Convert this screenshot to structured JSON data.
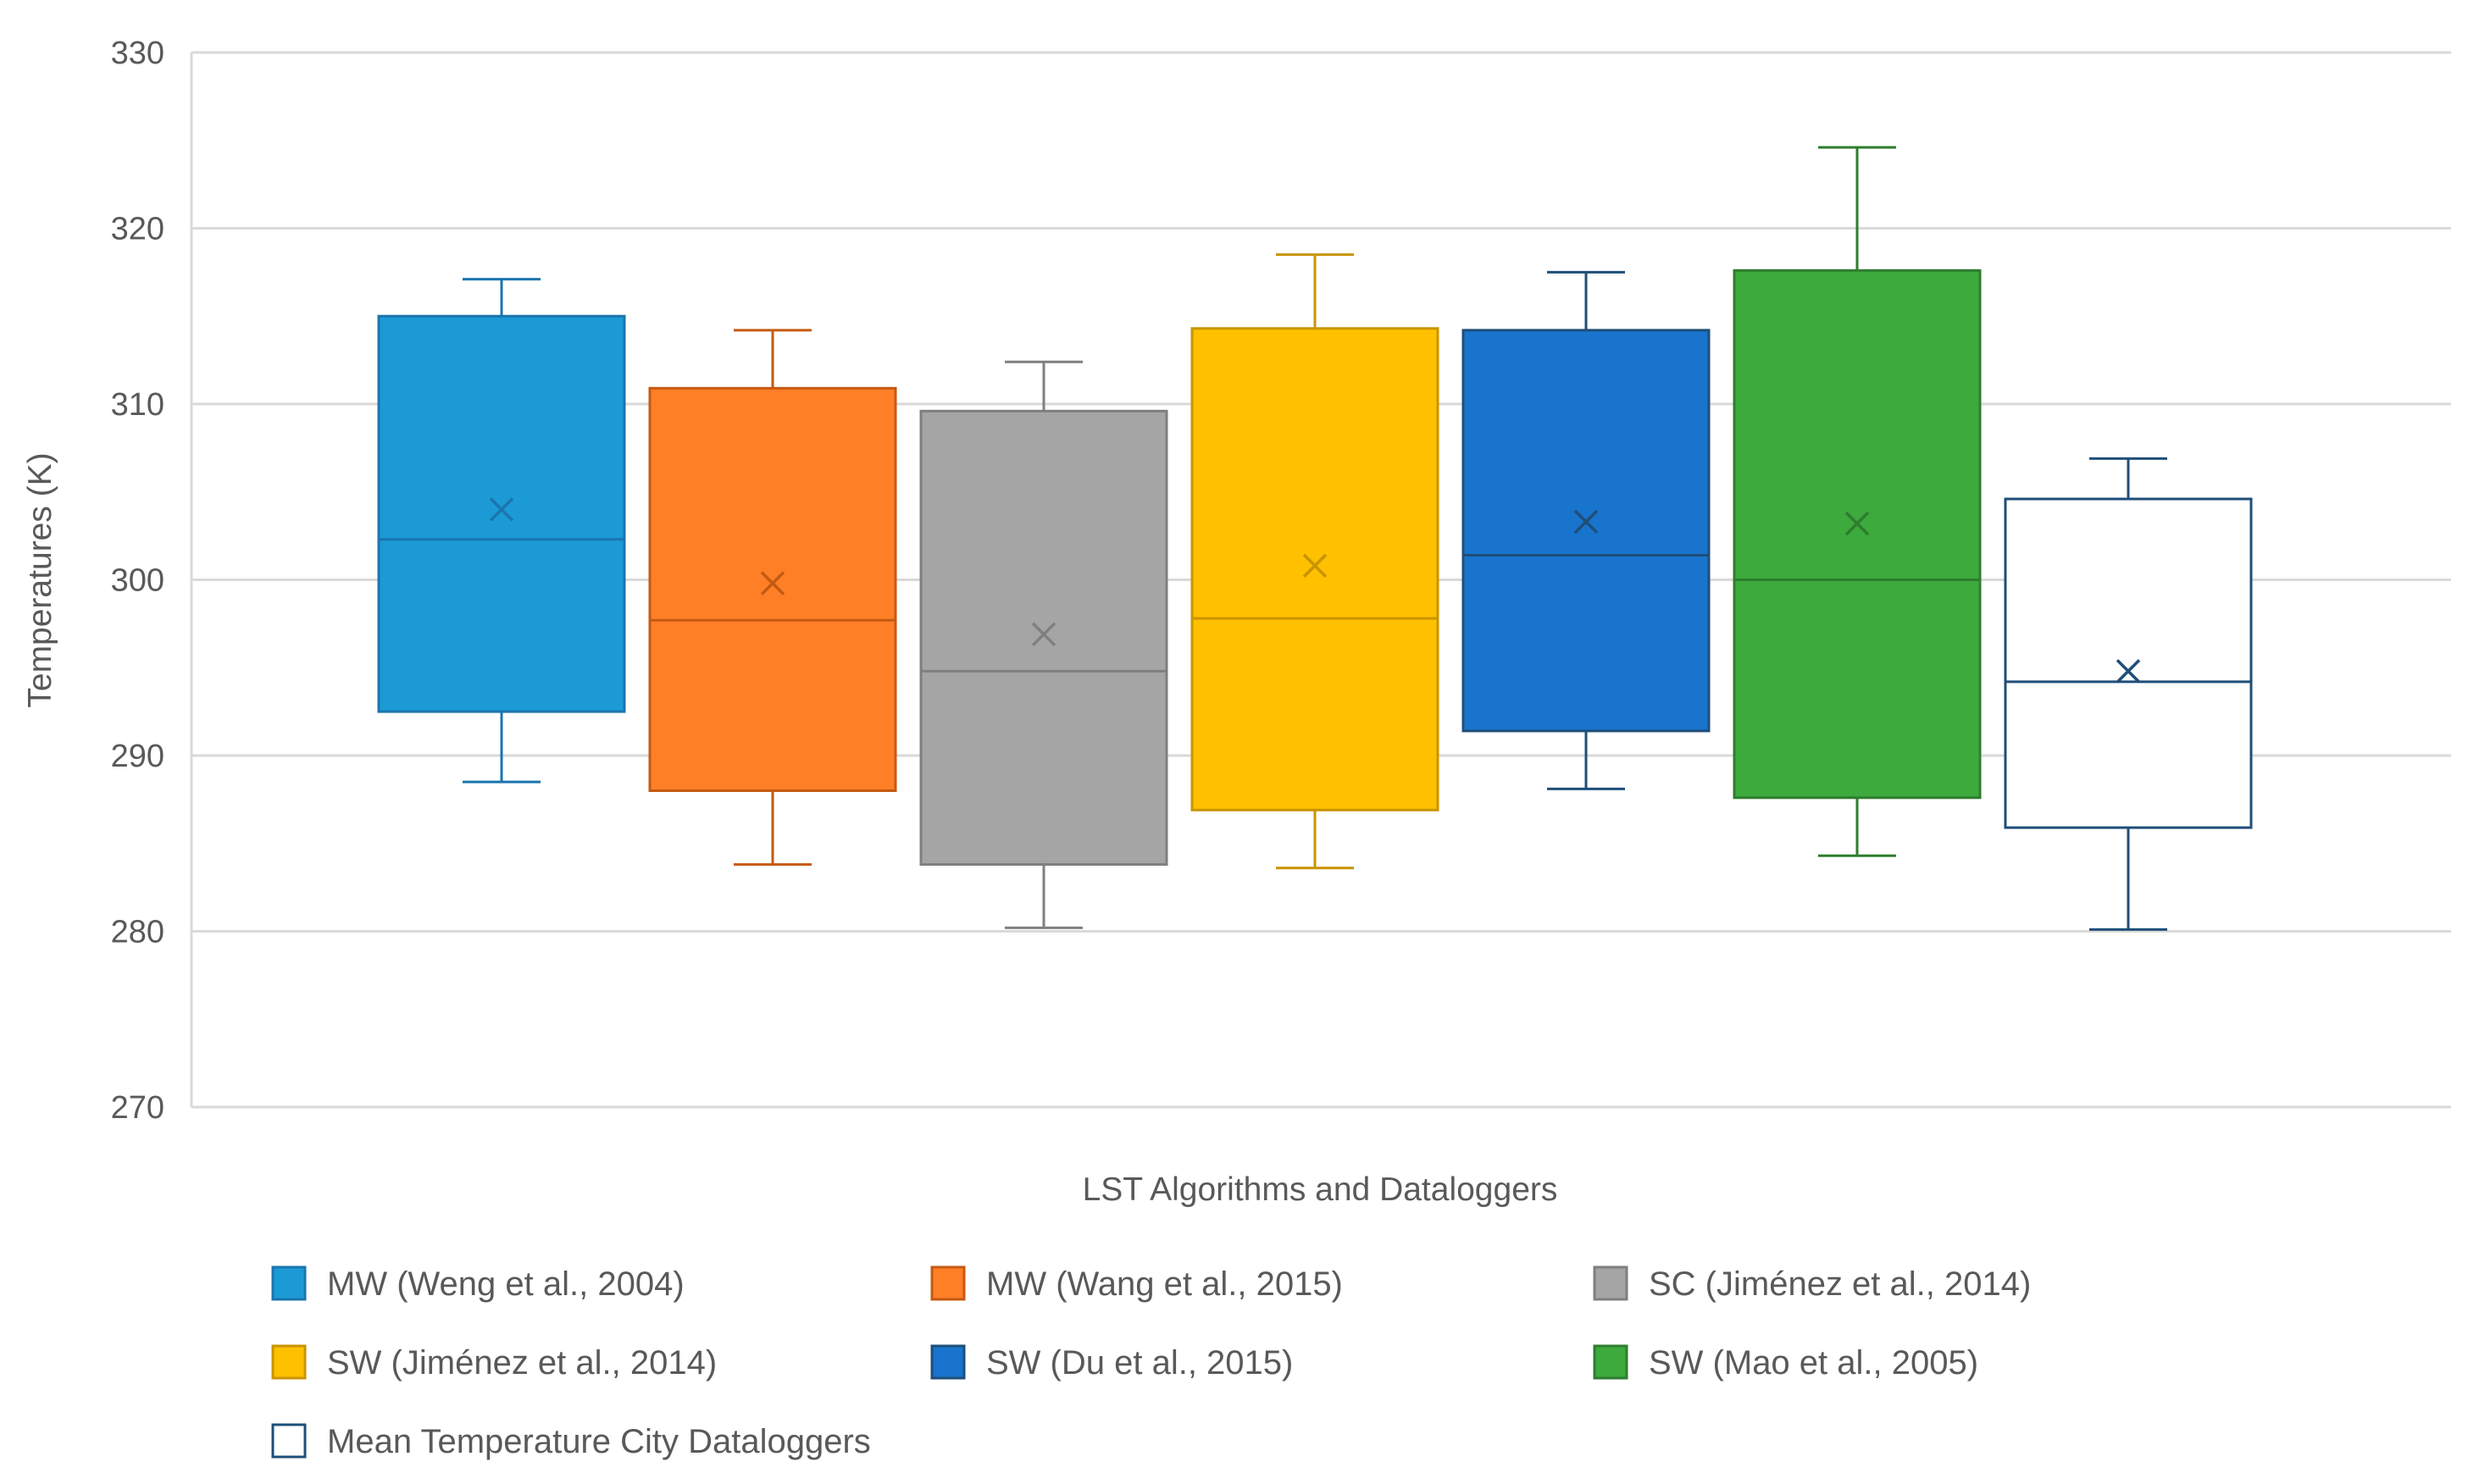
{
  "chart_data": {
    "type": "boxplot",
    "title": "",
    "xlabel": "LST Algorithms and Dataloggers",
    "ylabel": "Temperatures (K)",
    "ylim": [
      270,
      330
    ],
    "yticks": [
      270,
      280,
      290,
      300,
      310,
      320,
      330
    ],
    "grid": true,
    "legend_position": "bottom",
    "series": [
      {
        "name": "MW (Weng et al., 2004)",
        "color": "#1B9AD6",
        "line_color": "#1B75AE",
        "mean_color": "#1B75AE",
        "min": 288.5,
        "q1": 292.5,
        "median": 302.3,
        "q3": 315.0,
        "max": 317.1,
        "mean": 304.0
      },
      {
        "name": "MW (Wang et al., 2015)",
        "color": "#FF7F27",
        "line_color": "#C55A11",
        "mean_color": "#C55A11",
        "min": 283.8,
        "q1": 288.0,
        "median": 297.7,
        "q3": 310.9,
        "max": 314.2,
        "mean": 299.8
      },
      {
        "name": "SC (Jiménez et al., 2014)",
        "color": "#A5A5A5",
        "line_color": "#7F7F7F",
        "mean_color": "#7F7F7F",
        "min": 280.2,
        "q1": 283.8,
        "median": 294.8,
        "q3": 309.6,
        "max": 312.4,
        "mean": 296.9
      },
      {
        "name": "SW (Jiménez et al., 2014)",
        "color": "#FFC000",
        "line_color": "#C99400",
        "mean_color": "#C99400",
        "min": 283.6,
        "q1": 286.9,
        "median": 297.8,
        "q3": 314.3,
        "max": 318.5,
        "mean": 300.8
      },
      {
        "name": "SW (Du et al., 2015)",
        "color": "#1874CD",
        "line_color": "#1F4E79",
        "mean_color": "#1F4E79",
        "min": 288.1,
        "q1": 291.4,
        "median": 301.4,
        "q3": 314.2,
        "max": 317.5,
        "mean": 303.3
      },
      {
        "name": "SW (Mao et al., 2005)",
        "color": "#3DAA3D",
        "line_color": "#2E7D2E",
        "mean_color": "#2E7D2E",
        "min": 284.3,
        "q1": 287.6,
        "median": 300.0,
        "q3": 317.6,
        "max": 324.6,
        "mean": 303.2
      },
      {
        "name": "Mean Temperature City Dataloggers",
        "color": "#FFFFFF",
        "line_color": "#1F4E79",
        "mean_color": "#1F4E79",
        "min": 280.1,
        "q1": 285.9,
        "median": 294.2,
        "q3": 304.6,
        "max": 306.9,
        "mean": 294.8
      }
    ]
  }
}
